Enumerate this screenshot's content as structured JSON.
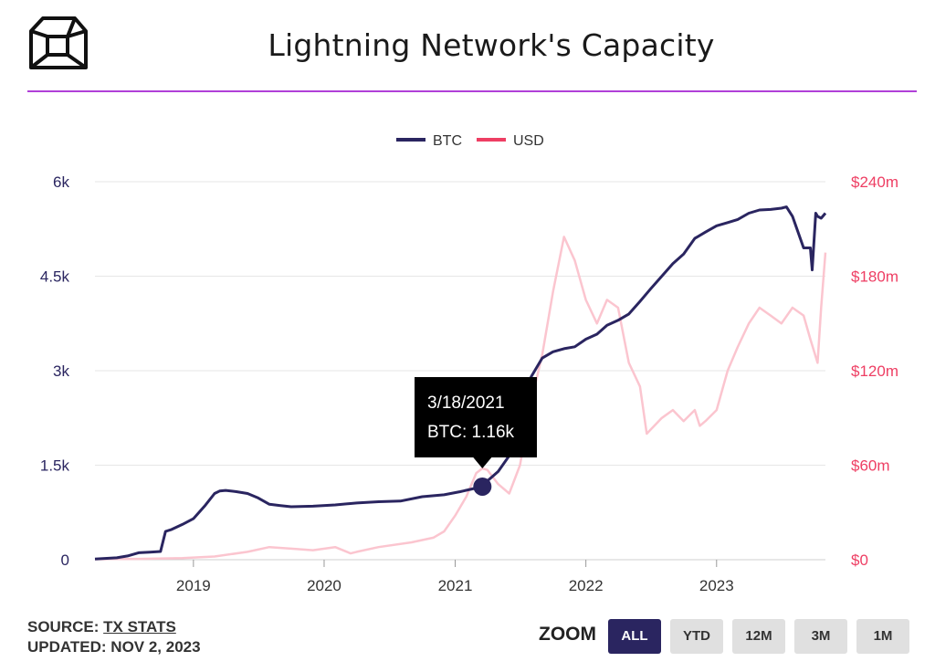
{
  "header": {
    "title": "Lightning Network's Capacity",
    "logo_icon": "cube-logo-icon"
  },
  "colors": {
    "btc": "#2a2560",
    "usd": "#fbc5cf",
    "usd_axis": "#ee3e63",
    "accent_rule": "#b040d8",
    "tooltip_bg": "#000000"
  },
  "chart_data": {
    "type": "line",
    "title": "Lightning Network's Capacity",
    "x_ticks": [
      "2019",
      "2020",
      "2021",
      "2022",
      "2023"
    ],
    "x_range": [
      "2018-04",
      "2023-11"
    ],
    "legend": {
      "placement": "top-center",
      "entries": [
        "BTC",
        "USD"
      ]
    },
    "axes": {
      "left": {
        "ticks": [
          "0",
          "1.5k",
          "3k",
          "4.5k",
          "6k"
        ],
        "min": 0,
        "max": 6000
      },
      "right": {
        "ticks": [
          "$0",
          "$60m",
          "$120m",
          "$180m",
          "$240m"
        ],
        "min": 0,
        "max": 240
      }
    },
    "grid": true,
    "series": [
      {
        "name": "BTC",
        "axis": "left",
        "x": [
          "2018-04-01",
          "2018-06-01",
          "2018-07-01",
          "2018-08-01",
          "2018-09-01",
          "2018-10-01",
          "2018-10-15",
          "2018-11-01",
          "2018-12-01",
          "2019-01-01",
          "2019-02-01",
          "2019-03-01",
          "2019-03-15",
          "2019-04-01",
          "2019-05-01",
          "2019-06-01",
          "2019-07-01",
          "2019-08-01",
          "2019-09-01",
          "2019-10-01",
          "2019-12-01",
          "2020-02-01",
          "2020-04-01",
          "2020-06-01",
          "2020-08-01",
          "2020-10-01",
          "2020-12-01",
          "2021-01-15",
          "2021-03-18",
          "2021-04-01",
          "2021-05-01",
          "2021-06-01",
          "2021-07-01",
          "2021-08-01",
          "2021-09-01",
          "2021-10-01",
          "2021-11-01",
          "2021-12-01",
          "2022-01-01",
          "2022-02-01",
          "2022-03-01",
          "2022-04-01",
          "2022-05-01",
          "2022-06-01",
          "2022-07-01",
          "2022-08-01",
          "2022-09-01",
          "2022-10-01",
          "2022-11-01",
          "2022-12-01",
          "2023-01-01",
          "2023-02-01",
          "2023-03-01",
          "2023-04-01",
          "2023-05-01",
          "2023-06-01",
          "2023-07-01",
          "2023-07-15",
          "2023-08-01",
          "2023-09-01",
          "2023-09-20",
          "2023-09-25",
          "2023-10-05",
          "2023-10-10",
          "2023-10-20",
          "2023-11-01"
        ],
        "y": [
          10,
          30,
          60,
          110,
          120,
          130,
          450,
          480,
          560,
          650,
          850,
          1050,
          1090,
          1100,
          1080,
          1050,
          980,
          880,
          860,
          840,
          850,
          870,
          900,
          920,
          930,
          1000,
          1030,
          1080,
          1160,
          1250,
          1400,
          1650,
          2300,
          2900,
          3200,
          3300,
          3350,
          3380,
          3500,
          3580,
          3720,
          3800,
          3900,
          4100,
          4300,
          4500,
          4700,
          4850,
          5100,
          5200,
          5300,
          5350,
          5400,
          5500,
          5550,
          5560,
          5580,
          5600,
          5450,
          4950,
          4950,
          4600,
          5500,
          5450,
          5420,
          5500
        ]
      },
      {
        "name": "USD",
        "axis": "right",
        "x": [
          "2018-04-01",
          "2018-08-01",
          "2018-12-01",
          "2019-03-01",
          "2019-06-01",
          "2019-08-01",
          "2019-10-01",
          "2019-12-01",
          "2020-02-01",
          "2020-03-15",
          "2020-04-01",
          "2020-06-01",
          "2020-09-01",
          "2020-11-01",
          "2020-12-01",
          "2021-01-01",
          "2021-02-01",
          "2021-03-01",
          "2021-03-18",
          "2021-04-01",
          "2021-05-01",
          "2021-06-01",
          "2021-07-01",
          "2021-08-01",
          "2021-09-01",
          "2021-10-01",
          "2021-11-01",
          "2021-12-01",
          "2022-01-01",
          "2022-02-01",
          "2022-03-01",
          "2022-04-01",
          "2022-05-01",
          "2022-06-01",
          "2022-06-20",
          "2022-08-01",
          "2022-09-01",
          "2022-10-01",
          "2022-11-01",
          "2022-11-15",
          "2022-12-01",
          "2023-01-01",
          "2023-02-01",
          "2023-03-01",
          "2023-04-01",
          "2023-05-01",
          "2023-06-01",
          "2023-07-01",
          "2023-08-01",
          "2023-09-01",
          "2023-09-20",
          "2023-10-10",
          "2023-10-20",
          "2023-11-01"
        ],
        "y": [
          0.3,
          0.5,
          1,
          2,
          5,
          8,
          7,
          6,
          8,
          4,
          5,
          8,
          11,
          14,
          18,
          28,
          40,
          55,
          58,
          57,
          48,
          42,
          60,
          100,
          130,
          170,
          205,
          190,
          165,
          150,
          165,
          160,
          125,
          110,
          80,
          90,
          95,
          88,
          95,
          85,
          88,
          95,
          120,
          135,
          150,
          160,
          155,
          150,
          160,
          155,
          140,
          125,
          160,
          195
        ]
      }
    ],
    "tooltip": {
      "date": "3/18/2021",
      "label": "BTC: 1.16k",
      "x": "2021-03-18",
      "y": 1160
    }
  },
  "footer": {
    "source_prefix": "SOURCE:",
    "source_name": "TX STATS",
    "updated": "UPDATED: NOV 2, 2023",
    "zoom_label": "ZOOM",
    "zoom_options": [
      "ALL",
      "YTD",
      "12M",
      "3M",
      "1M"
    ],
    "zoom_selected": "ALL"
  }
}
